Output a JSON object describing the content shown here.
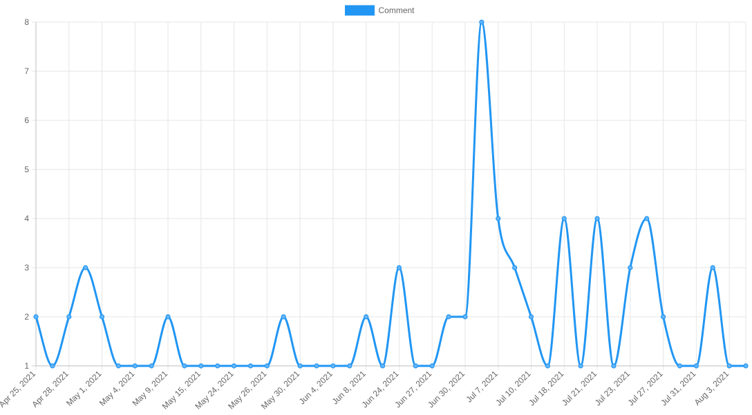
{
  "chart_data": {
    "type": "line",
    "legend_position": "top",
    "grid": true,
    "curve": "smooth",
    "x_labels": [
      "Apr 25, 2021",
      "Apr 28, 2021",
      "May 1, 2021",
      "May 4, 2021",
      "May 9, 2021",
      "May 15, 2021",
      "May 24, 2021",
      "May 26, 2021",
      "May 30, 2021",
      "Jun 4, 2021",
      "Jun 8, 2021",
      "Jun 24, 2021",
      "Jun 27, 2021",
      "Jun 30, 2021",
      "Jul 7, 2021",
      "Jul 10, 2021",
      "Jul 18, 2021",
      "Jul 21, 2021",
      "Jul 23, 2021",
      "Jul 27, 2021",
      "Jul 31, 2021",
      "Aug 3, 2021"
    ],
    "points_per_label": 2,
    "ylim": [
      1,
      8
    ],
    "y_ticks": [
      1,
      2,
      3,
      4,
      5,
      6,
      7,
      8
    ],
    "series": [
      {
        "name": "Comment",
        "color": "#2196f3",
        "values": [
          2,
          1,
          2,
          3,
          2,
          1,
          1,
          1,
          2,
          1,
          1,
          1,
          1,
          1,
          1,
          2,
          1,
          1,
          1,
          1,
          2,
          1,
          3,
          1,
          1,
          2,
          2,
          8,
          4,
          3,
          2,
          1,
          4,
          1,
          4,
          1,
          3,
          4,
          2,
          1,
          1,
          3,
          1,
          1
        ]
      }
    ]
  }
}
